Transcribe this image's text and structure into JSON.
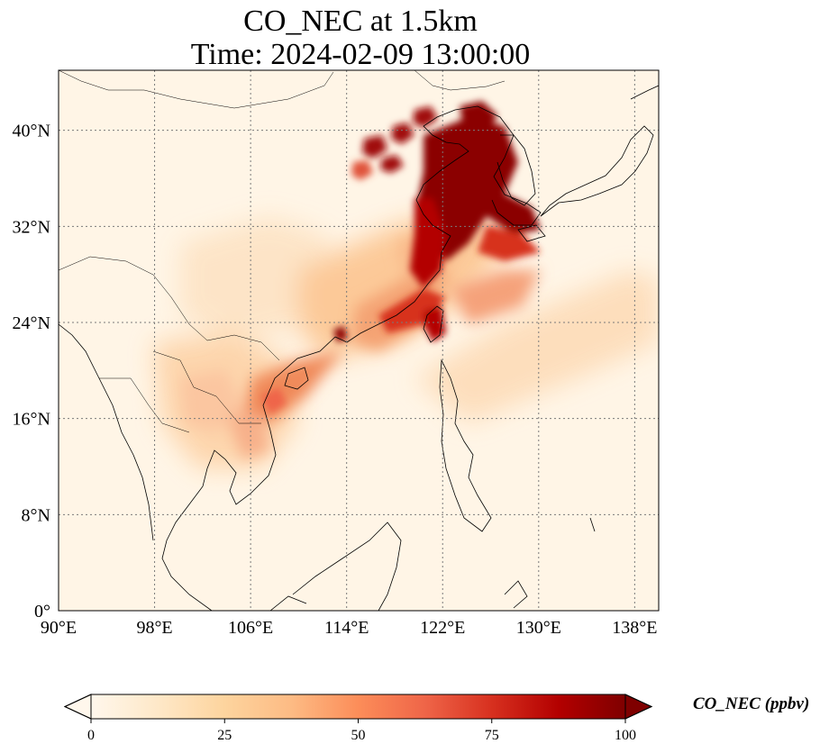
{
  "title": {
    "line1": "CO_NEC at 1.5km",
    "line2": "Time: 2024-02-09 13:00:00"
  },
  "map": {
    "projection": "PlateCarree",
    "lon_range": [
      90,
      140
    ],
    "lat_range": [
      0,
      45
    ],
    "lon_ticks": [
      90,
      98,
      106,
      114,
      122,
      130,
      138
    ],
    "lat_ticks": [
      0,
      8,
      16,
      24,
      32,
      40
    ],
    "lon_tick_labels": [
      "90°E",
      "98°E",
      "106°E",
      "114°E",
      "122°E",
      "130°E",
      "138°E"
    ],
    "lat_tick_labels": [
      "0°",
      "8°N",
      "16°N",
      "24°N",
      "32°N",
      "40°N"
    ],
    "gridlines": "dotted grey",
    "coastlines": true,
    "borders": true
  },
  "colorbar": {
    "label": "CO_NEC (ppbv)",
    "colormap": "OrRd",
    "min": 0,
    "max": 100,
    "extend": "both",
    "ticks": [
      "0",
      "25",
      "50",
      "75",
      "100"
    ],
    "colors": {
      "low": "#fff7ec",
      "mid_low": "#fdd49e",
      "mid": "#fc8d59",
      "mid_high": "#d7301f",
      "high": "#7f0000"
    }
  }
}
